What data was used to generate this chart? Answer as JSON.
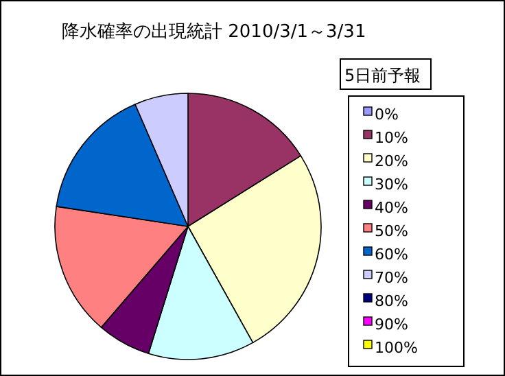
{
  "chart_data": {
    "type": "pie",
    "title": "降水確率の出現統計 2010/3/1～3/31",
    "legend_title": "5日前予報",
    "legend": "right",
    "categories": [
      "0%",
      "10%",
      "20%",
      "30%",
      "40%",
      "50%",
      "60%",
      "70%",
      "80%",
      "90%",
      "100%"
    ],
    "values": [
      0,
      16.1,
      25.8,
      12.9,
      6.5,
      16.1,
      16.1,
      6.5,
      0,
      0,
      0
    ],
    "colors": [
      "#9999ff",
      "#993366",
      "#ffffcc",
      "#ccffff",
      "#660066",
      "#ff8080",
      "#0066cc",
      "#ccccff",
      "#000080",
      "#ff00ff",
      "#ffff00"
    ]
  }
}
